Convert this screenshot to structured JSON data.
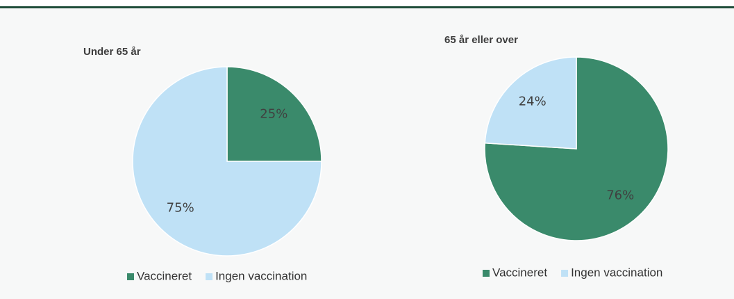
{
  "chart_data": [
    {
      "type": "pie",
      "title": "Under 65 år",
      "categories": [
        "Vaccineret",
        "Ingen vaccination"
      ],
      "values": [
        25,
        75
      ],
      "value_labels": [
        "25%",
        "75%"
      ],
      "colors": [
        "#3a8a6b",
        "#bfe1f6"
      ]
    },
    {
      "type": "pie",
      "title": "65 år eller over",
      "categories": [
        "Vaccineret",
        "Ingen vaccination"
      ],
      "values": [
        76,
        24
      ],
      "value_labels": [
        "76%",
        "24%"
      ],
      "colors": [
        "#3a8a6b",
        "#bfe1f6"
      ]
    }
  ]
}
